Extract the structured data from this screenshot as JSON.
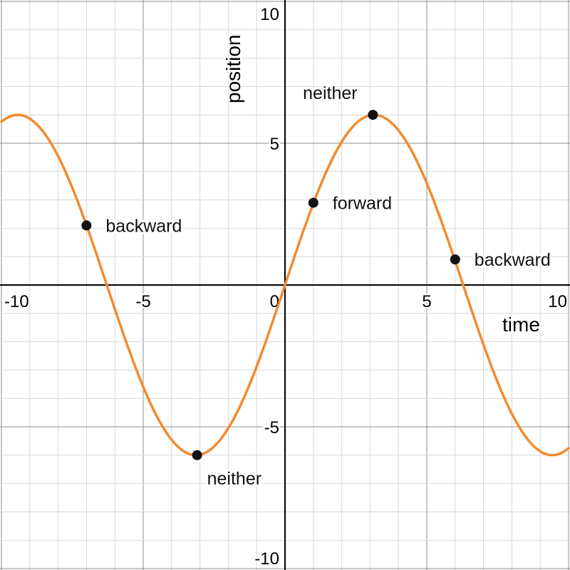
{
  "chart_data": {
    "type": "line",
    "xlabel": "time",
    "ylabel": "position",
    "xlim": [
      -10,
      10
    ],
    "ylim": [
      -10,
      10
    ],
    "grid": true,
    "minor_step": 1,
    "major_step": 5,
    "x_ticks": [
      {
        "value": -10,
        "label": "-10"
      },
      {
        "value": -5,
        "label": "-5"
      },
      {
        "value": 5,
        "label": "5"
      },
      {
        "value": 10,
        "label": "10"
      }
    ],
    "y_ticks": [
      {
        "value": 10,
        "label": "10"
      },
      {
        "value": 5,
        "label": "5"
      },
      {
        "value": -5,
        "label": "-5"
      },
      {
        "value": -10,
        "label": "-10"
      }
    ],
    "origin_label": "0",
    "curve": {
      "function": "6 * sin(0.5 * t)",
      "amplitude": 6,
      "angular_frequency": 0.5,
      "color": "#f48a2e"
    },
    "points": [
      {
        "x": -7.0,
        "y": 2.1,
        "label": "backward",
        "label_side": "right"
      },
      {
        "x": -3.1,
        "y": -6.0,
        "label": "neither",
        "label_side": "below"
      },
      {
        "x": 1.0,
        "y": 2.9,
        "label": "forward",
        "label_side": "right"
      },
      {
        "x": 3.1,
        "y": 6.0,
        "label": "neither",
        "label_side": "above"
      },
      {
        "x": 6.0,
        "y": 0.9,
        "label": "backward",
        "label_side": "right"
      }
    ]
  }
}
